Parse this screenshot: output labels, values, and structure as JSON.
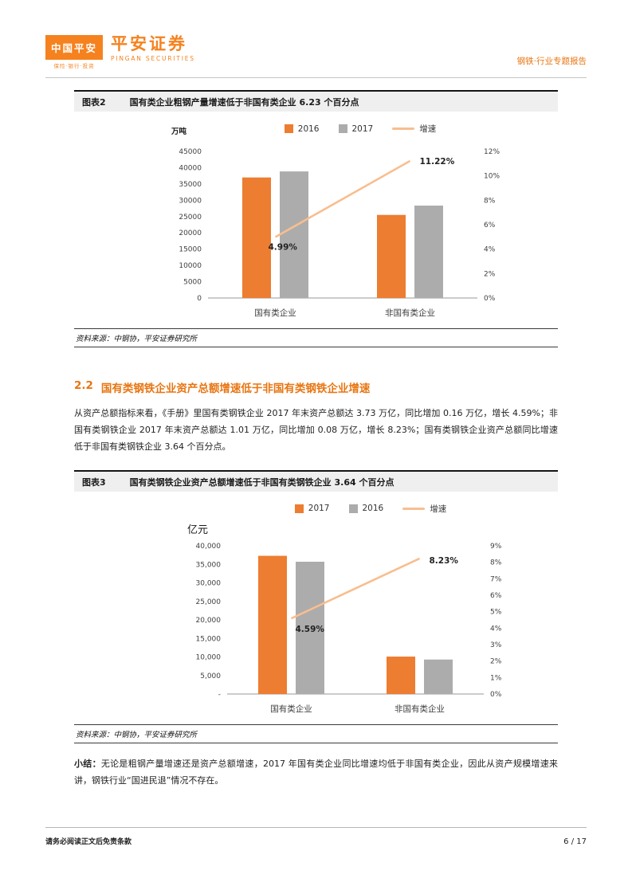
{
  "header": {
    "logo_box_title": "中国平安",
    "logo_box_sub": "保险·银行·投资",
    "brand_cn": "平安证券",
    "brand_en": "PINGAN SECURITIES",
    "report_type": "钢铁·行业专题报告"
  },
  "colors": {
    "brand_orange": "#F5821F",
    "heading_orange": "#E87511",
    "bar_orange": "#ED7D31",
    "bar_gray": "#ACACAC",
    "growth_line_peach": "#F8BE8F"
  },
  "figure2": {
    "tag": "图表2",
    "title": "国有类企业粗钢产量增速低于非国有类企业 6.23 个百分点",
    "source": "资料来源：中钢协，平安证券研究所"
  },
  "section": {
    "number": "2.2",
    "title": "国有类钢铁企业资产总额增速低于非国有类钢铁企业增速",
    "body": "从资产总额指标来看，《手册》里国有类钢铁企业 2017 年末资产总额达 3.73 万亿，同比增加 0.16 万亿，增长 4.59%；非国有类钢铁企业 2017 年末资产总额达 1.01 万亿，同比增加 0.08 万亿，增长 8.23%；国有类钢铁企业资产总额同比增速低于非国有类钢铁企业 3.64 个百分点。"
  },
  "figure3": {
    "tag": "图表3",
    "title": "国有类钢铁企业资产总额增速低于非国有类钢铁企业 3.64 个百分点",
    "source": "资料来源：中钢协，平安证券研究所"
  },
  "summary": {
    "label": "小结：",
    "body": "无论是粗钢产量增速还是资产总额增速，2017 年国有类企业同比增速均低于非国有类企业，因此从资产规模增速来讲，钢铁行业“国进民退”情况不存在。"
  },
  "footer": {
    "disclaimer": "请务必阅读正文后免责条款",
    "page": "6 / 17"
  },
  "chart_data": [
    {
      "type": "bar",
      "subtype": "grouped-bar-with-growth-line",
      "title": "国有类企业粗钢产量增速低于非国有类企业 6.23 个百分点",
      "unit_label": "万吨",
      "categories": [
        "国有类企业",
        "非国有类企业"
      ],
      "series": [
        {
          "name": "2016",
          "kind": "bar",
          "color": "#ED7D31",
          "values": [
            37000,
            25500
          ]
        },
        {
          "name": "2017",
          "kind": "bar",
          "color": "#ACACAC",
          "values": [
            38850,
            28360
          ]
        },
        {
          "name": "增速",
          "kind": "line",
          "color": "#F8BE8F",
          "values": [
            4.99,
            11.22
          ],
          "point_labels": [
            "4.99%",
            "11.22%"
          ]
        }
      ],
      "left_axis": {
        "min": 0,
        "max": 45000,
        "step": 5000,
        "format": "plain"
      },
      "right_axis": {
        "min": 0,
        "max": 12,
        "step": 2,
        "format": "percent"
      },
      "grid": false,
      "legend_position": "top-center"
    },
    {
      "type": "bar",
      "subtype": "grouped-bar-with-growth-line",
      "title": "国有类钢铁企业资产总额增速低于非国有类钢铁企业 3.64 个百分点",
      "unit_label": "亿元",
      "categories": [
        "国有类企业",
        "非国有类企业"
      ],
      "series": [
        {
          "name": "2017",
          "kind": "bar",
          "color": "#ED7D31",
          "values": [
            37300,
            10100
          ]
        },
        {
          "name": "2016",
          "kind": "bar",
          "color": "#ACACAC",
          "values": [
            35700,
            9300
          ]
        },
        {
          "name": "增速",
          "kind": "line",
          "color": "#F8BE8F",
          "values": [
            4.59,
            8.23
          ],
          "point_labels": [
            "4.59%",
            "8.23%"
          ]
        }
      ],
      "left_axis": {
        "min": 0,
        "max": 40000,
        "step": 5000,
        "format": "comma-dash"
      },
      "right_axis": {
        "min": 0,
        "max": 9,
        "step": 1,
        "format": "percent"
      },
      "grid": false,
      "legend_position": "top-center"
    }
  ]
}
